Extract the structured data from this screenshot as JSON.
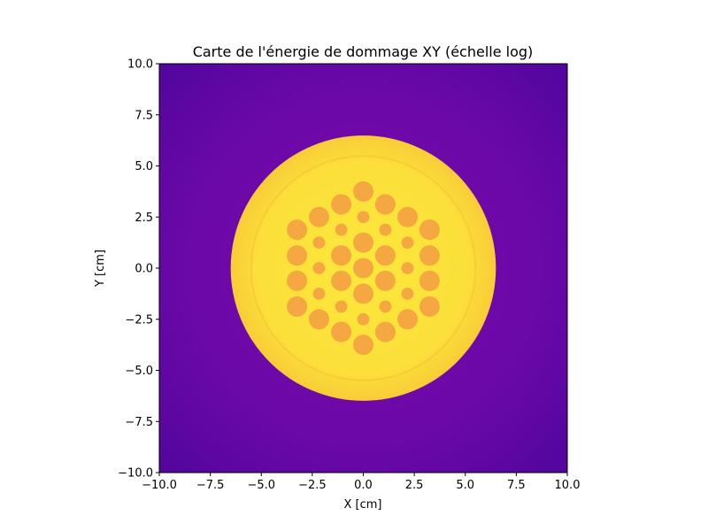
{
  "chart_data": {
    "type": "heatmap",
    "title": "Carte de l'énergie de dommage XY (échelle log)",
    "xlabel": "X [cm]",
    "ylabel": "Y [cm]",
    "xlim": [
      -10,
      10
    ],
    "ylim": [
      -10,
      10
    ],
    "xticks": [
      -10,
      -7.5,
      -5,
      -2.5,
      0,
      2.5,
      5,
      7.5,
      10
    ],
    "yticks": [
      -10,
      -7.5,
      -5,
      -2.5,
      0,
      2.5,
      5,
      7.5,
      10
    ],
    "xtick_labels": [
      "−10.0",
      "−7.5",
      "−5.0",
      "−2.5",
      "0.0",
      "2.5",
      "5.0",
      "7.5",
      "10.0"
    ],
    "ytick_labels": [
      "−10.0",
      "−7.5",
      "−5.0",
      "−2.5",
      "0.0",
      "2.5",
      "5.0",
      "7.5",
      "10.0"
    ],
    "grid": false,
    "colormap": "plasma",
    "colors": {
      "background_outer": "#6b08a8",
      "background_edge": "#5b06a0",
      "disk_outer": "#f9cf3a",
      "disk_ring": "#f7c835",
      "disk_center": "#fde83b",
      "rod": "#f5a841"
    },
    "structures": {
      "outer_disk": {
        "cx": 0,
        "cy": 0,
        "r": 6.5
      },
      "inner_ring": {
        "cx": 0,
        "cy": 0,
        "r": 5.5
      },
      "rods": [
        {
          "x": 0,
          "y": 3.75,
          "r": 0.5
        },
        {
          "x": -1.08,
          "y": 3.12,
          "r": 0.5
        },
        {
          "x": 1.08,
          "y": 3.12,
          "r": 0.5
        },
        {
          "x": -2.17,
          "y": 2.5,
          "r": 0.5
        },
        {
          "x": 0,
          "y": 2.5,
          "r": 0.3
        },
        {
          "x": 2.17,
          "y": 2.5,
          "r": 0.5
        },
        {
          "x": -3.25,
          "y": 1.88,
          "r": 0.5
        },
        {
          "x": -1.08,
          "y": 1.88,
          "r": 0.3
        },
        {
          "x": 1.08,
          "y": 1.88,
          "r": 0.3
        },
        {
          "x": 3.25,
          "y": 1.88,
          "r": 0.5
        },
        {
          "x": -2.17,
          "y": 1.25,
          "r": 0.3
        },
        {
          "x": 0,
          "y": 1.25,
          "r": 0.5
        },
        {
          "x": 2.17,
          "y": 1.25,
          "r": 0.3
        },
        {
          "x": -3.25,
          "y": 0.62,
          "r": 0.5
        },
        {
          "x": -1.08,
          "y": 0.62,
          "r": 0.5
        },
        {
          "x": 1.08,
          "y": 0.62,
          "r": 0.5
        },
        {
          "x": 3.25,
          "y": 0.62,
          "r": 0.5
        },
        {
          "x": -2.17,
          "y": 0,
          "r": 0.3
        },
        {
          "x": 0,
          "y": 0,
          "r": 0.5
        },
        {
          "x": 2.17,
          "y": 0,
          "r": 0.3
        },
        {
          "x": -3.25,
          "y": -0.62,
          "r": 0.5
        },
        {
          "x": -1.08,
          "y": -0.62,
          "r": 0.5
        },
        {
          "x": 1.08,
          "y": -0.62,
          "r": 0.5
        },
        {
          "x": 3.25,
          "y": -0.62,
          "r": 0.5
        },
        {
          "x": -2.17,
          "y": -1.25,
          "r": 0.3
        },
        {
          "x": 0,
          "y": -1.25,
          "r": 0.5
        },
        {
          "x": 2.17,
          "y": -1.25,
          "r": 0.3
        },
        {
          "x": -3.25,
          "y": -1.88,
          "r": 0.5
        },
        {
          "x": -1.08,
          "y": -1.88,
          "r": 0.3
        },
        {
          "x": 1.08,
          "y": -1.88,
          "r": 0.3
        },
        {
          "x": 3.25,
          "y": -1.88,
          "r": 0.5
        },
        {
          "x": -2.17,
          "y": -2.5,
          "r": 0.5
        },
        {
          "x": 0,
          "y": -2.5,
          "r": 0.3
        },
        {
          "x": 2.17,
          "y": -2.5,
          "r": 0.5
        },
        {
          "x": -1.08,
          "y": -3.12,
          "r": 0.5
        },
        {
          "x": 1.08,
          "y": -3.12,
          "r": 0.5
        },
        {
          "x": 0,
          "y": -3.75,
          "r": 0.5
        }
      ]
    }
  }
}
